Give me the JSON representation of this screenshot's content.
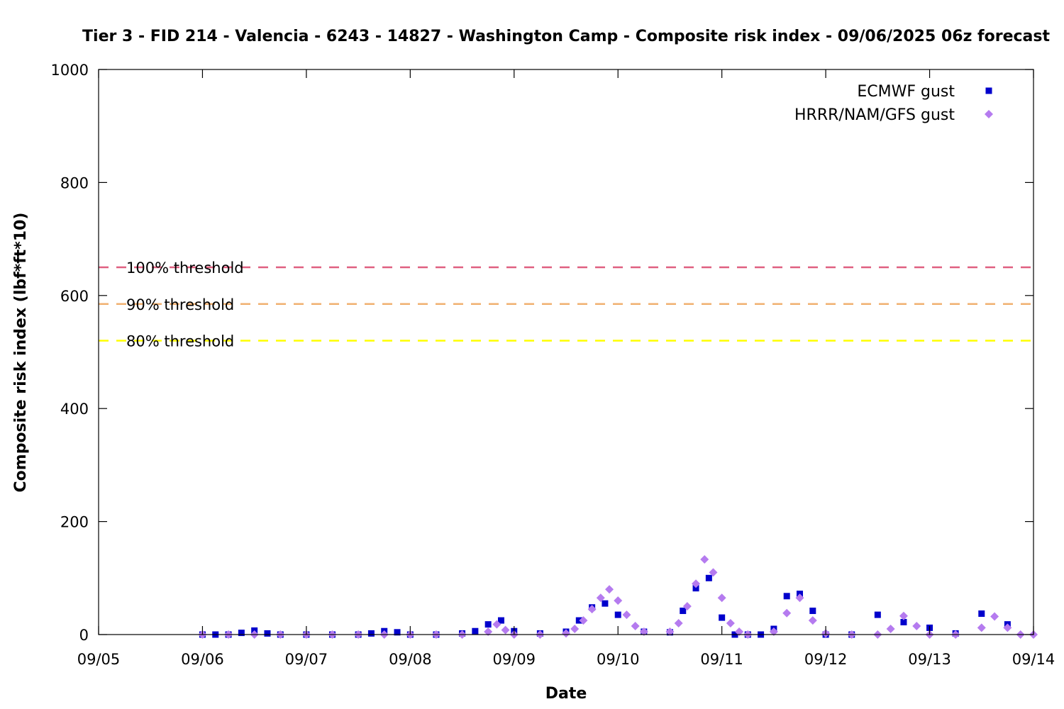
{
  "chart_data": {
    "type": "scatter",
    "title": "Tier 3 - FID 214 - Valencia - 6243 - 14827 - Washington Camp - Composite risk index - 09/06/2025 06z forecast",
    "xlabel": "Date",
    "ylabel": "Composite risk index (lbf*ft*10)",
    "xlim": [
      "09/05",
      "09/14"
    ],
    "ylim": [
      0,
      1000
    ],
    "x_ticks": [
      "09/05",
      "09/06",
      "09/07",
      "09/08",
      "09/09",
      "09/10",
      "09/11",
      "09/12",
      "09/13",
      "09/14"
    ],
    "y_ticks": [
      0,
      200,
      400,
      600,
      800,
      1000
    ],
    "grid": false,
    "legend_position": "top-right",
    "thresholds": [
      {
        "label": "100% threshold",
        "value": 650,
        "color": "#e06080"
      },
      {
        "label": "90% threshold",
        "value": 585,
        "color": "#f0b070"
      },
      {
        "label": "80% threshold",
        "value": 520,
        "color": "#ffff00"
      }
    ],
    "series": [
      {
        "name": "ECMWF gust",
        "marker": "square",
        "color": "#0000cc",
        "points": [
          [
            "09/06 00z",
            0
          ],
          [
            "09/06 03z",
            0
          ],
          [
            "09/06 06z",
            0
          ],
          [
            "09/06 09z",
            3
          ],
          [
            "09/06 12z",
            7
          ],
          [
            "09/06 15z",
            2
          ],
          [
            "09/06 18z",
            0
          ],
          [
            "09/07 00z",
            0
          ],
          [
            "09/07 06z",
            0
          ],
          [
            "09/07 12z",
            0
          ],
          [
            "09/07 15z",
            2
          ],
          [
            "09/07 18z",
            6
          ],
          [
            "09/07 21z",
            4
          ],
          [
            "09/08 00z",
            0
          ],
          [
            "09/08 06z",
            0
          ],
          [
            "09/08 12z",
            2
          ],
          [
            "09/08 15z",
            6
          ],
          [
            "09/08 18z",
            18
          ],
          [
            "09/08 21z",
            25
          ],
          [
            "09/09 00z",
            6
          ],
          [
            "09/09 06z",
            2
          ],
          [
            "09/09 12z",
            5
          ],
          [
            "09/09 15z",
            25
          ],
          [
            "09/09 18z",
            48
          ],
          [
            "09/09 21z",
            55
          ],
          [
            "09/10 00z",
            35
          ],
          [
            "09/10 06z",
            5
          ],
          [
            "09/10 12z",
            4
          ],
          [
            "09/10 15z",
            42
          ],
          [
            "09/10 18z",
            82
          ],
          [
            "09/10 21z",
            100
          ],
          [
            "09/11 00z",
            30
          ],
          [
            "09/11 03z",
            0
          ],
          [
            "09/11 06z",
            0
          ],
          [
            "09/11 09z",
            0
          ],
          [
            "09/11 12z",
            10
          ],
          [
            "09/11 15z",
            68
          ],
          [
            "09/11 18z",
            72
          ],
          [
            "09/11 21z",
            42
          ],
          [
            "09/12 00z",
            0
          ],
          [
            "09/12 06z",
            0
          ],
          [
            "09/12 12z",
            35
          ],
          [
            "09/12 18z",
            22
          ],
          [
            "09/13 00z",
            12
          ],
          [
            "09/13 06z",
            2
          ],
          [
            "09/13 12z",
            37
          ],
          [
            "09/13 18z",
            18
          ]
        ]
      },
      {
        "name": "HRRR/NAM/GFS gust",
        "marker": "diamond",
        "color": "#b57bef",
        "points": [
          [
            "09/06 00z",
            0
          ],
          [
            "09/06 06z",
            0
          ],
          [
            "09/06 12z",
            0
          ],
          [
            "09/06 18z",
            0
          ],
          [
            "09/07 00z",
            0
          ],
          [
            "09/07 06z",
            0
          ],
          [
            "09/07 12z",
            0
          ],
          [
            "09/07 18z",
            0
          ],
          [
            "09/08 00z",
            0
          ],
          [
            "09/08 06z",
            0
          ],
          [
            "09/08 12z",
            0
          ],
          [
            "09/08 18z",
            5
          ],
          [
            "09/08 20z",
            18
          ],
          [
            "09/08 22z",
            8
          ],
          [
            "09/09 00z",
            0
          ],
          [
            "09/09 06z",
            0
          ],
          [
            "09/09 12z",
            2
          ],
          [
            "09/09 14z",
            10
          ],
          [
            "09/09 16z",
            25
          ],
          [
            "09/09 18z",
            45
          ],
          [
            "09/09 20z",
            65
          ],
          [
            "09/09 22z",
            80
          ],
          [
            "09/10 00z",
            60
          ],
          [
            "09/10 02z",
            35
          ],
          [
            "09/10 04z",
            15
          ],
          [
            "09/10 06z",
            5
          ],
          [
            "09/10 12z",
            5
          ],
          [
            "09/10 14z",
            20
          ],
          [
            "09/10 16z",
            50
          ],
          [
            "09/10 18z",
            90
          ],
          [
            "09/10 20z",
            133
          ],
          [
            "09/10 22z",
            110
          ],
          [
            "09/11 00z",
            65
          ],
          [
            "09/11 02z",
            20
          ],
          [
            "09/11 04z",
            5
          ],
          [
            "09/11 06z",
            0
          ],
          [
            "09/11 12z",
            5
          ],
          [
            "09/11 15z",
            38
          ],
          [
            "09/11 18z",
            65
          ],
          [
            "09/11 21z",
            25
          ],
          [
            "09/12 00z",
            2
          ],
          [
            "09/12 06z",
            0
          ],
          [
            "09/12 12z",
            0
          ],
          [
            "09/12 15z",
            10
          ],
          [
            "09/12 18z",
            33
          ],
          [
            "09/12 21z",
            15
          ],
          [
            "09/13 00z",
            0
          ],
          [
            "09/13 06z",
            0
          ],
          [
            "09/13 12z",
            12
          ],
          [
            "09/13 15z",
            32
          ],
          [
            "09/13 18z",
            12
          ],
          [
            "09/13 21z",
            0
          ],
          [
            "09/14 00z",
            0
          ]
        ]
      }
    ]
  }
}
